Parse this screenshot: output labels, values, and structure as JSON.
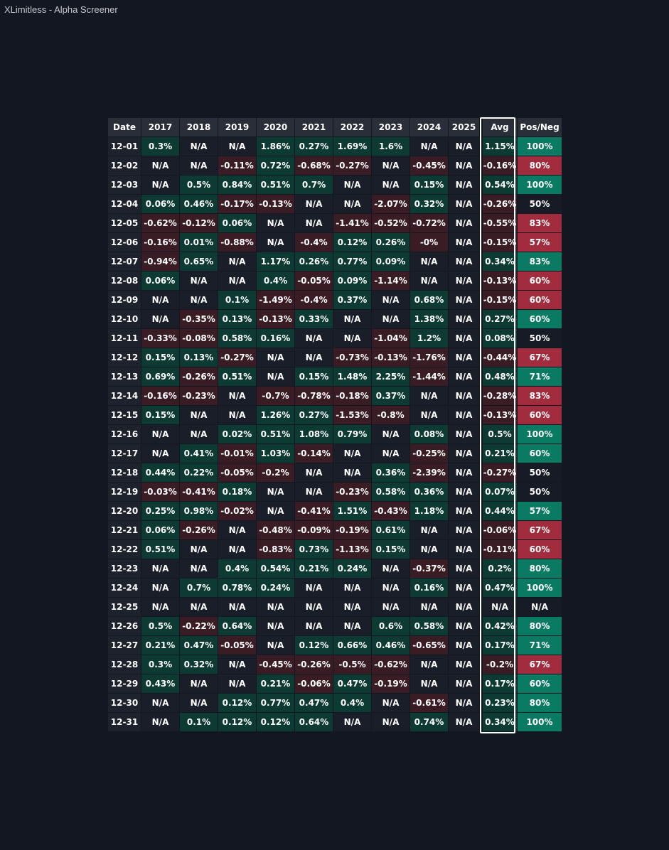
{
  "window": {
    "title": "XLimitless - Alpha Screener"
  },
  "table": {
    "headers": [
      "Date",
      "2017",
      "2018",
      "2019",
      "2020",
      "2021",
      "2022",
      "2023",
      "2024",
      "2025",
      "Avg",
      "Pos/Neg"
    ],
    "rows": [
      [
        "12-01",
        "0.3%",
        "N/A",
        "N/A",
        "1.86%",
        "0.27%",
        "1.69%",
        "1.6%",
        "N/A",
        "N/A",
        "1.15%",
        "100%"
      ],
      [
        "12-02",
        "N/A",
        "N/A",
        "-0.11%",
        "0.72%",
        "-0.68%",
        "-0.27%",
        "N/A",
        "-0.45%",
        "N/A",
        "-0.16%",
        "80%"
      ],
      [
        "12-03",
        "N/A",
        "0.5%",
        "0.84%",
        "0.51%",
        "0.7%",
        "N/A",
        "N/A",
        "0.15%",
        "N/A",
        "0.54%",
        "100%"
      ],
      [
        "12-04",
        "0.06%",
        "0.46%",
        "-0.17%",
        "-0.13%",
        "N/A",
        "N/A",
        "-2.07%",
        "0.32%",
        "N/A",
        "-0.26%",
        "50%"
      ],
      [
        "12-05",
        "-0.62%",
        "-0.12%",
        "0.06%",
        "N/A",
        "N/A",
        "-1.41%",
        "-0.52%",
        "-0.72%",
        "N/A",
        "-0.55%",
        "83%"
      ],
      [
        "12-06",
        "-0.16%",
        "0.01%",
        "-0.88%",
        "N/A",
        "-0.4%",
        "0.12%",
        "0.26%",
        "-0%",
        "N/A",
        "-0.15%",
        "57%"
      ],
      [
        "12-07",
        "-0.94%",
        "0.65%",
        "N/A",
        "1.17%",
        "0.26%",
        "0.77%",
        "0.09%",
        "N/A",
        "N/A",
        "0.34%",
        "83%"
      ],
      [
        "12-08",
        "0.06%",
        "N/A",
        "N/A",
        "0.4%",
        "-0.05%",
        "0.09%",
        "-1.14%",
        "N/A",
        "N/A",
        "-0.13%",
        "60%"
      ],
      [
        "12-09",
        "N/A",
        "N/A",
        "0.1%",
        "-1.49%",
        "-0.4%",
        "0.37%",
        "N/A",
        "0.68%",
        "N/A",
        "-0.15%",
        "60%"
      ],
      [
        "12-10",
        "N/A",
        "-0.35%",
        "0.13%",
        "-0.13%",
        "0.33%",
        "N/A",
        "N/A",
        "1.38%",
        "N/A",
        "0.27%",
        "60%"
      ],
      [
        "12-11",
        "-0.33%",
        "-0.08%",
        "0.58%",
        "0.16%",
        "N/A",
        "N/A",
        "-1.04%",
        "1.2%",
        "N/A",
        "0.08%",
        "50%"
      ],
      [
        "12-12",
        "0.15%",
        "0.13%",
        "-0.27%",
        "N/A",
        "N/A",
        "-0.73%",
        "-0.13%",
        "-1.76%",
        "N/A",
        "-0.44%",
        "67%"
      ],
      [
        "12-13",
        "0.69%",
        "-0.26%",
        "0.51%",
        "N/A",
        "0.15%",
        "1.48%",
        "2.25%",
        "-1.44%",
        "N/A",
        "0.48%",
        "71%"
      ],
      [
        "12-14",
        "-0.16%",
        "-0.23%",
        "N/A",
        "-0.7%",
        "-0.78%",
        "-0.18%",
        "0.37%",
        "N/A",
        "N/A",
        "-0.28%",
        "83%"
      ],
      [
        "12-15",
        "0.15%",
        "N/A",
        "N/A",
        "1.26%",
        "0.27%",
        "-1.53%",
        "-0.8%",
        "N/A",
        "N/A",
        "-0.13%",
        "60%"
      ],
      [
        "12-16",
        "N/A",
        "N/A",
        "0.02%",
        "0.51%",
        "1.08%",
        "0.79%",
        "N/A",
        "0.08%",
        "N/A",
        "0.5%",
        "100%"
      ],
      [
        "12-17",
        "N/A",
        "0.41%",
        "-0.01%",
        "1.03%",
        "-0.14%",
        "N/A",
        "N/A",
        "-0.25%",
        "N/A",
        "0.21%",
        "60%"
      ],
      [
        "12-18",
        "0.44%",
        "0.22%",
        "-0.05%",
        "-0.2%",
        "N/A",
        "N/A",
        "0.36%",
        "-2.39%",
        "N/A",
        "-0.27%",
        "50%"
      ],
      [
        "12-19",
        "-0.03%",
        "-0.41%",
        "0.18%",
        "N/A",
        "N/A",
        "-0.23%",
        "0.58%",
        "0.36%",
        "N/A",
        "0.07%",
        "50%"
      ],
      [
        "12-20",
        "0.25%",
        "0.98%",
        "-0.02%",
        "N/A",
        "-0.41%",
        "1.51%",
        "-0.43%",
        "1.18%",
        "N/A",
        "0.44%",
        "57%"
      ],
      [
        "12-21",
        "0.06%",
        "-0.26%",
        "N/A",
        "-0.48%",
        "-0.09%",
        "-0.19%",
        "0.61%",
        "N/A",
        "N/A",
        "-0.06%",
        "67%"
      ],
      [
        "12-22",
        "0.51%",
        "N/A",
        "N/A",
        "-0.83%",
        "0.73%",
        "-1.13%",
        "0.15%",
        "N/A",
        "N/A",
        "-0.11%",
        "60%"
      ],
      [
        "12-23",
        "N/A",
        "N/A",
        "0.4%",
        "0.54%",
        "0.21%",
        "0.24%",
        "N/A",
        "-0.37%",
        "N/A",
        "0.2%",
        "80%"
      ],
      [
        "12-24",
        "N/A",
        "0.7%",
        "0.78%",
        "0.24%",
        "N/A",
        "N/A",
        "N/A",
        "0.16%",
        "N/A",
        "0.47%",
        "100%"
      ],
      [
        "12-25",
        "N/A",
        "N/A",
        "N/A",
        "N/A",
        "N/A",
        "N/A",
        "N/A",
        "N/A",
        "N/A",
        "N/A",
        "N/A"
      ],
      [
        "12-26",
        "0.5%",
        "-0.22%",
        "0.64%",
        "N/A",
        "N/A",
        "N/A",
        "0.6%",
        "0.58%",
        "N/A",
        "0.42%",
        "80%"
      ],
      [
        "12-27",
        "0.21%",
        "0.47%",
        "-0.05%",
        "N/A",
        "0.12%",
        "0.66%",
        "0.46%",
        "-0.65%",
        "N/A",
        "0.17%",
        "71%"
      ],
      [
        "12-28",
        "0.3%",
        "0.32%",
        "N/A",
        "-0.45%",
        "-0.26%",
        "-0.5%",
        "-0.62%",
        "N/A",
        "N/A",
        "-0.2%",
        "67%"
      ],
      [
        "12-29",
        "0.43%",
        "N/A",
        "N/A",
        "0.21%",
        "-0.06%",
        "0.47%",
        "-0.19%",
        "N/A",
        "N/A",
        "0.17%",
        "60%"
      ],
      [
        "12-30",
        "N/A",
        "N/A",
        "0.12%",
        "0.77%",
        "0.47%",
        "0.4%",
        "N/A",
        "-0.61%",
        "N/A",
        "0.23%",
        "80%"
      ],
      [
        "12-31",
        "N/A",
        "0.1%",
        "0.12%",
        "0.12%",
        "0.64%",
        "N/A",
        "N/A",
        "0.74%",
        "N/A",
        "0.34%",
        "100%"
      ]
    ]
  },
  "colors": {
    "background": "#131722",
    "header_bg": "#2a2e39",
    "positive_cell": "#0d3b34",
    "negative_cell": "#3a1c25",
    "positive_strong": "#0b7a63",
    "negative_strong": "#a12c3d",
    "avg_highlight_border": "#ffffff"
  }
}
